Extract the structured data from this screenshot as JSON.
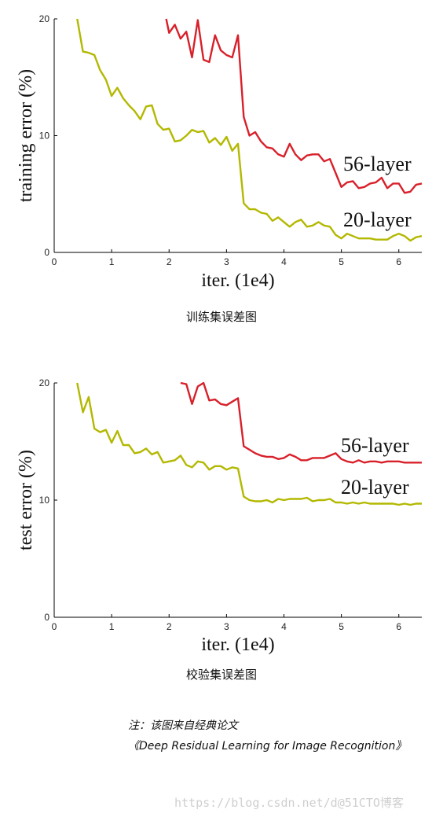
{
  "chart_data": [
    {
      "type": "line",
      "ylabel": "training error (%)",
      "xlabel": "iter. (1e4)",
      "xlim": [
        0,
        6.4
      ],
      "ylim": [
        0,
        20
      ],
      "xticks": [
        "0",
        "1",
        "2",
        "3",
        "4",
        "5",
        "6"
      ],
      "yticks": [
        "0",
        "10",
        "20"
      ],
      "series": [
        {
          "name": "56-layer",
          "color": "#d8202a",
          "x": [
            1.95,
            2.0,
            2.1,
            2.2,
            2.3,
            2.4,
            2.5,
            2.6,
            2.7,
            2.8,
            2.9,
            3.0,
            3.1,
            3.2,
            3.3,
            3.4,
            3.5,
            3.6,
            3.7,
            3.8,
            3.9,
            4.0,
            4.1,
            4.2,
            4.3,
            4.4,
            4.5,
            4.6,
            4.7,
            4.8,
            4.9,
            5.0,
            5.1,
            5.2,
            5.3,
            5.4,
            5.5,
            5.6,
            5.7,
            5.8,
            5.9,
            6.0,
            6.1,
            6.2,
            6.3,
            6.4
          ],
          "y": [
            20.0,
            18.8,
            19.5,
            18.3,
            18.9,
            16.7,
            19.9,
            16.5,
            16.3,
            18.6,
            17.3,
            16.9,
            16.7,
            18.6,
            11.6,
            10.0,
            10.3,
            9.5,
            9.0,
            8.9,
            8.4,
            8.2,
            9.3,
            8.4,
            7.9,
            8.3,
            8.4,
            8.4,
            7.8,
            8.0,
            6.8,
            5.6,
            6.0,
            6.1,
            5.5,
            5.6,
            5.9,
            6.0,
            6.4,
            5.5,
            5.9,
            5.9,
            5.1,
            5.2,
            5.8,
            5.9
          ]
        },
        {
          "name": "20-layer",
          "color": "#b3b800",
          "x": [
            0.4,
            0.5,
            0.6,
            0.7,
            0.8,
            0.9,
            1.0,
            1.1,
            1.2,
            1.3,
            1.4,
            1.5,
            1.6,
            1.7,
            1.8,
            1.9,
            2.0,
            2.1,
            2.2,
            2.3,
            2.4,
            2.5,
            2.6,
            2.7,
            2.8,
            2.9,
            3.0,
            3.1,
            3.2,
            3.3,
            3.4,
            3.5,
            3.6,
            3.7,
            3.8,
            3.9,
            4.0,
            4.1,
            4.2,
            4.3,
            4.4,
            4.5,
            4.6,
            4.7,
            4.8,
            4.9,
            5.0,
            5.1,
            5.2,
            5.3,
            5.4,
            5.5,
            5.6,
            5.7,
            5.8,
            5.9,
            6.0,
            6.1,
            6.2,
            6.3,
            6.4
          ],
          "y": [
            20.0,
            17.2,
            17.1,
            16.9,
            15.6,
            14.8,
            13.4,
            14.1,
            13.2,
            12.6,
            12.1,
            11.4,
            12.5,
            12.6,
            11.0,
            10.5,
            10.6,
            9.5,
            9.6,
            10.0,
            10.5,
            10.3,
            10.4,
            9.4,
            9.8,
            9.2,
            9.9,
            8.7,
            9.3,
            4.2,
            3.7,
            3.7,
            3.4,
            3.3,
            2.7,
            3.0,
            2.6,
            2.2,
            2.6,
            2.8,
            2.2,
            2.3,
            2.6,
            2.3,
            2.2,
            1.5,
            1.2,
            1.6,
            1.4,
            1.2,
            1.2,
            1.2,
            1.1,
            1.1,
            1.1,
            1.4,
            1.6,
            1.4,
            1.0,
            1.3,
            1.4
          ]
        }
      ],
      "annotations": [
        "56-layer",
        "20-layer"
      ],
      "grid": false,
      "legend": "none"
    },
    {
      "type": "line",
      "ylabel": "test error (%)",
      "xlabel": "iter. (1e4)",
      "xlim": [
        0,
        6.4
      ],
      "ylim": [
        0,
        20
      ],
      "xticks": [
        "0",
        "1",
        "2",
        "3",
        "4",
        "5",
        "6"
      ],
      "yticks": [
        "0",
        "10",
        "20"
      ],
      "series": [
        {
          "name": "56-layer",
          "color": "#d8202a",
          "x": [
            2.2,
            2.3,
            2.4,
            2.5,
            2.6,
            2.7,
            2.8,
            2.9,
            3.0,
            3.1,
            3.2,
            3.3,
            3.4,
            3.5,
            3.6,
            3.7,
            3.8,
            3.9,
            4.0,
            4.1,
            4.2,
            4.3,
            4.4,
            4.5,
            4.6,
            4.7,
            4.8,
            4.9,
            5.0,
            5.1,
            5.2,
            5.3,
            5.4,
            5.5,
            5.6,
            5.7,
            5.8,
            5.9,
            6.0,
            6.1,
            6.2,
            6.3,
            6.4
          ],
          "y": [
            20.0,
            19.9,
            18.2,
            19.7,
            20.0,
            18.5,
            18.6,
            18.2,
            18.1,
            18.4,
            18.7,
            14.6,
            14.3,
            14.0,
            13.8,
            13.7,
            13.7,
            13.5,
            13.6,
            13.9,
            13.7,
            13.4,
            13.4,
            13.6,
            13.6,
            13.6,
            13.8,
            14.0,
            13.5,
            13.3,
            13.2,
            13.4,
            13.2,
            13.3,
            13.3,
            13.2,
            13.3,
            13.3,
            13.3,
            13.2,
            13.2,
            13.2,
            13.2
          ]
        },
        {
          "name": "20-layer",
          "color": "#b3b800",
          "x": [
            0.4,
            0.5,
            0.6,
            0.7,
            0.8,
            0.9,
            1.0,
            1.1,
            1.2,
            1.3,
            1.4,
            1.5,
            1.6,
            1.7,
            1.8,
            1.9,
            2.0,
            2.1,
            2.2,
            2.3,
            2.4,
            2.5,
            2.6,
            2.7,
            2.8,
            2.9,
            3.0,
            3.1,
            3.2,
            3.3,
            3.4,
            3.5,
            3.6,
            3.7,
            3.8,
            3.9,
            4.0,
            4.1,
            4.2,
            4.3,
            4.4,
            4.5,
            4.6,
            4.7,
            4.8,
            4.9,
            5.0,
            5.1,
            5.2,
            5.3,
            5.4,
            5.5,
            5.6,
            5.7,
            5.8,
            5.9,
            6.0,
            6.1,
            6.2,
            6.3,
            6.4
          ],
          "y": [
            20.0,
            17.5,
            18.8,
            16.1,
            15.8,
            16.0,
            14.9,
            15.9,
            14.7,
            14.7,
            14.0,
            14.1,
            14.4,
            13.9,
            14.1,
            13.2,
            13.3,
            13.4,
            13.8,
            13.0,
            12.8,
            13.3,
            13.2,
            12.6,
            12.9,
            12.9,
            12.6,
            12.8,
            12.7,
            10.3,
            10.0,
            9.9,
            9.9,
            10.0,
            9.8,
            10.1,
            10.0,
            10.1,
            10.1,
            10.1,
            10.2,
            9.9,
            10.0,
            10.0,
            10.1,
            9.8,
            9.8,
            9.7,
            9.8,
            9.7,
            9.8,
            9.7,
            9.7,
            9.7,
            9.7,
            9.7,
            9.6,
            9.7,
            9.6,
            9.7,
            9.7
          ]
        }
      ],
      "annotations": [
        "56-layer",
        "20-layer"
      ],
      "grid": false,
      "legend": "none"
    }
  ],
  "captions": {
    "chart1": "训练集误差图",
    "chart2": "校验集误差图"
  },
  "note": {
    "line1": "注：该图来自经典论文",
    "line2": "《Deep Residual Learning for Image Recognition》"
  },
  "watermark": "https://blog.csdn.net/d@51CTO博客"
}
